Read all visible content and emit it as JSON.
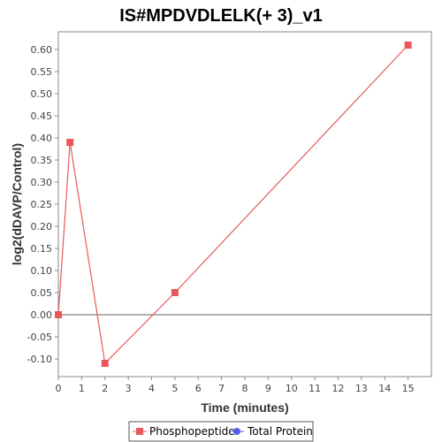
{
  "chart_data": {
    "type": "line",
    "title": "IS#MPDVDLELK(+ 3)_v1",
    "xlabel": "Time (minutes)",
    "ylabel": "log2(dDAVP/Control)",
    "xlim": [
      0,
      16
    ],
    "ylim": [
      -0.14,
      0.64
    ],
    "x_ticks": [
      0,
      1,
      2,
      3,
      4,
      5,
      6,
      7,
      8,
      9,
      10,
      11,
      12,
      13,
      14,
      15
    ],
    "y_ticks": [
      -0.1,
      -0.05,
      0.0,
      0.05,
      0.1,
      0.15,
      0.2,
      0.25,
      0.3,
      0.35,
      0.4,
      0.45,
      0.5,
      0.55,
      0.6
    ],
    "grid": false,
    "legend_position": "bottom",
    "series": [
      {
        "name": "Phosphopeptide",
        "color": "#e8585a",
        "marker": "square",
        "points": [
          {
            "x": 0,
            "y": 0.0
          },
          {
            "x": 0.5,
            "y": 0.39
          },
          {
            "x": 2,
            "y": -0.11
          },
          {
            "x": 5,
            "y": 0.05
          },
          {
            "x": 15,
            "y": 0.61
          }
        ]
      },
      {
        "name": "Total Protein",
        "color": "#5b5bf0",
        "marker": "circle",
        "points": []
      }
    ]
  }
}
